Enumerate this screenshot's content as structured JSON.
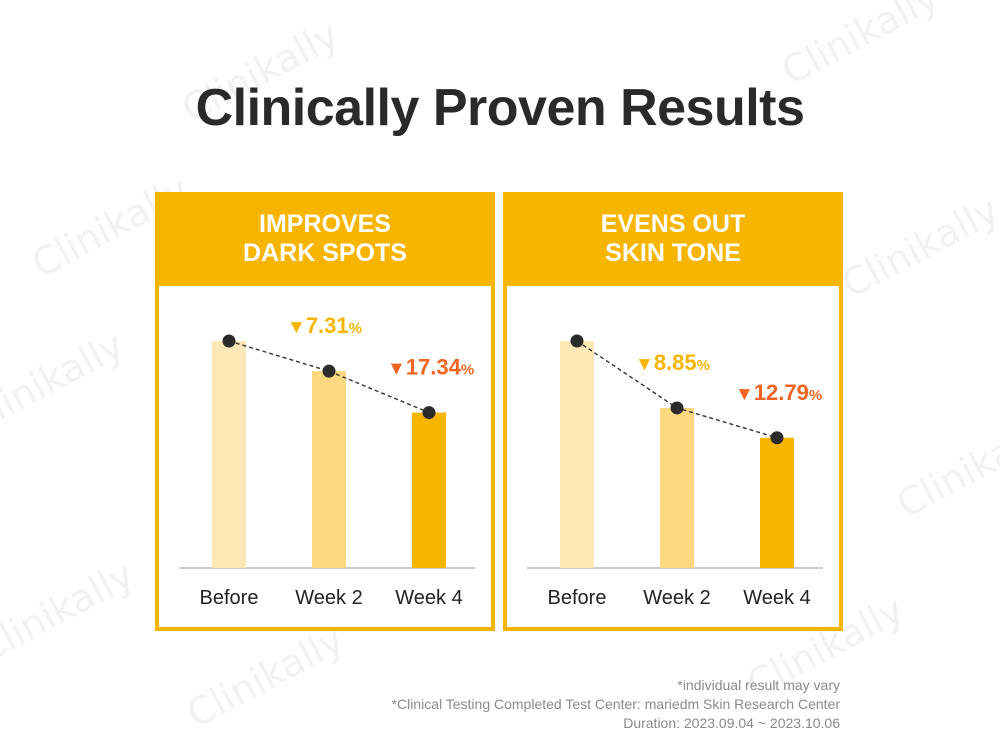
{
  "title": "Clinically Proven Results",
  "watermark_text": "Clinikally",
  "colors": {
    "panel": "#F8B500",
    "bar_before": "#FDE9B6",
    "bar_week2": "#FDD87F",
    "bar_week4": "#F8B500",
    "label_week2": "#F8B500",
    "label_week4": "#F26522",
    "dot": "#2b2b2b"
  },
  "chart_data": [
    {
      "type": "bar",
      "title": [
        "IMPROVES",
        "DARK SPOTS"
      ],
      "categories": [
        "Before",
        "Week 2",
        "Week 4"
      ],
      "values": [
        100,
        92.69,
        82.66
      ],
      "ylim": [
        45,
        100
      ],
      "annotations": [
        {
          "category": "Week 2",
          "arrow": "▼",
          "value": "7.31",
          "unit": "%"
        },
        {
          "category": "Week 4",
          "arrow": "▼",
          "value": "17.34",
          "unit": "%"
        }
      ],
      "trend_line": "dashed"
    },
    {
      "type": "bar",
      "title": [
        "EVENS OUT",
        "SKIN TONE"
      ],
      "categories": [
        "Before",
        "Week 2",
        "Week 4"
      ],
      "values": [
        100,
        91.15,
        87.21
      ],
      "ylim": [
        70,
        100
      ],
      "annotations": [
        {
          "category": "Week 2",
          "arrow": "▼",
          "value": "8.85",
          "unit": "%"
        },
        {
          "category": "Week 4",
          "arrow": "▼",
          "value": "12.79",
          "unit": "%"
        }
      ],
      "trend_line": "dashed"
    }
  ],
  "footnotes": [
    "*individual result may vary",
    "*Clinical Testing Completed Test Center: mariedm Skin Research Center",
    "Duration: 2023.09.04 ~ 2023.10.06"
  ]
}
